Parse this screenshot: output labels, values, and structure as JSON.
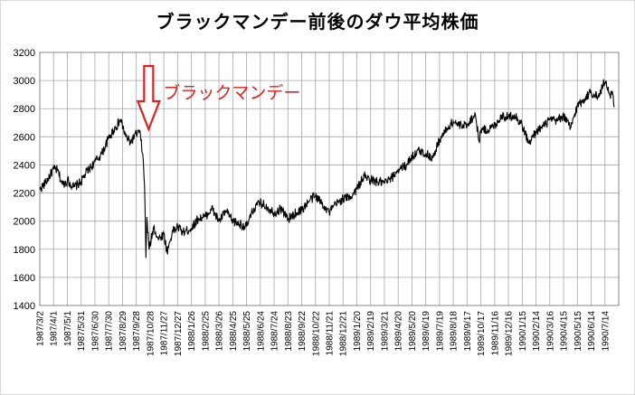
{
  "chart_data": {
    "type": "line",
    "title": "ブラックマンデー前後のダウ平均株価",
    "xlabel": "",
    "ylabel": "",
    "ylim": [
      1400,
      3200
    ],
    "yticks": [
      1400,
      1600,
      1800,
      2000,
      2200,
      2400,
      2600,
      2800,
      3000,
      3200
    ],
    "grid": true,
    "legend": "none",
    "line_color": "#000000",
    "x_tick_labels": [
      "1987/3/2",
      "1987/4/1",
      "1987/5/1",
      "1987/5/31",
      "1987/6/30",
      "1987/7/30",
      "1987/8/29",
      "1987/9/28",
      "1987/10/28",
      "1987/11/27",
      "1987/12/27",
      "1988/1/26",
      "1988/2/25",
      "1988/3/26",
      "1988/4/25",
      "1988/5/25",
      "1988/6/24",
      "1988/7/24",
      "1988/8/23",
      "1988/9/22",
      "1988/10/22",
      "1988/11/21",
      "1988/12/21",
      "1989/1/20",
      "1989/2/19",
      "1989/3/21",
      "1989/4/20",
      "1989/5/20",
      "1989/6/19",
      "1989/7/19",
      "1989/8/18",
      "1989/9/17",
      "1989/10/17",
      "1989/11/16",
      "1989/12/16",
      "1990/1/15",
      "1990/2/14",
      "1990/3/16",
      "1990/4/15",
      "1990/5/15",
      "1990/6/14",
      "1990/7/14"
    ],
    "annotation": {
      "text": "ブラックマンデー",
      "color": "#e02020",
      "date": "1987/10/19"
    },
    "series": [
      {
        "points": [
          [
            "1987/3/2",
            2225
          ],
          [
            "1987/3/15",
            2275
          ],
          [
            "1987/4/1",
            2370
          ],
          [
            "1987/4/10",
            2360
          ],
          [
            "1987/4/20",
            2260
          ],
          [
            "1987/5/1",
            2290
          ],
          [
            "1987/5/15",
            2240
          ],
          [
            "1987/5/31",
            2280
          ],
          [
            "1987/6/10",
            2340
          ],
          [
            "1987/6/30",
            2420
          ],
          [
            "1987/7/15",
            2480
          ],
          [
            "1987/7/30",
            2590
          ],
          [
            "1987/8/10",
            2650
          ],
          [
            "1987/8/25",
            2720
          ],
          [
            "1987/9/5",
            2600
          ],
          [
            "1987/9/15",
            2560
          ],
          [
            "1987/9/28",
            2620
          ],
          [
            "1987/10/5",
            2640
          ],
          [
            "1987/10/12",
            2480
          ],
          [
            "1987/10/16",
            2250
          ],
          [
            "1987/10/19",
            1738
          ],
          [
            "1987/10/21",
            2030
          ],
          [
            "1987/10/26",
            1800
          ],
          [
            "1987/11/5",
            1960
          ],
          [
            "1987/11/15",
            1870
          ],
          [
            "1987/11/27",
            1910
          ],
          [
            "1987/12/4",
            1780
          ],
          [
            "1987/12/15",
            1920
          ],
          [
            "1987/12/27",
            1960
          ],
          [
            "1988/1/8",
            1920
          ],
          [
            "1988/1/26",
            1950
          ],
          [
            "1988/2/10",
            2020
          ],
          [
            "1988/2/25",
            2030
          ],
          [
            "1988/3/10",
            2090
          ],
          [
            "1988/3/26",
            2000
          ],
          [
            "1988/4/10",
            2070
          ],
          [
            "1988/4/25",
            2000
          ],
          [
            "1988/5/10",
            1980
          ],
          [
            "1988/5/25",
            1960
          ],
          [
            "1988/6/10",
            2090
          ],
          [
            "1988/6/24",
            2130
          ],
          [
            "1988/7/10",
            2100
          ],
          [
            "1988/7/24",
            2060
          ],
          [
            "1988/8/10",
            2090
          ],
          [
            "1988/8/23",
            2010
          ],
          [
            "1988/9/10",
            2060
          ],
          [
            "1988/9/22",
            2080
          ],
          [
            "1988/10/10",
            2150
          ],
          [
            "1988/10/22",
            2180
          ],
          [
            "1988/11/10",
            2110
          ],
          [
            "1988/11/21",
            2060
          ],
          [
            "1988/12/5",
            2120
          ],
          [
            "1988/12/21",
            2160
          ],
          [
            "1989/1/5",
            2170
          ],
          [
            "1989/1/20",
            2230
          ],
          [
            "1989/2/5",
            2320
          ],
          [
            "1989/2/19",
            2290
          ],
          [
            "1989/3/5",
            2280
          ],
          [
            "1989/3/21",
            2270
          ],
          [
            "1989/4/5",
            2300
          ],
          [
            "1989/4/20",
            2370
          ],
          [
            "1989/5/5",
            2390
          ],
          [
            "1989/5/20",
            2460
          ],
          [
            "1989/6/5",
            2500
          ],
          [
            "1989/6/19",
            2480
          ],
          [
            "1989/7/5",
            2450
          ],
          [
            "1989/7/19",
            2580
          ],
          [
            "1989/8/5",
            2660
          ],
          [
            "1989/8/18",
            2710
          ],
          [
            "1989/9/5",
            2670
          ],
          [
            "1989/9/17",
            2690
          ],
          [
            "1989/10/5",
            2760
          ],
          [
            "1989/10/13",
            2570
          ],
          [
            "1989/10/17",
            2650
          ],
          [
            "1989/11/1",
            2650
          ],
          [
            "1989/11/16",
            2680
          ],
          [
            "1989/12/1",
            2750
          ],
          [
            "1989/12/16",
            2740
          ],
          [
            "1989/12/29",
            2760
          ],
          [
            "1990/1/15",
            2680
          ],
          [
            "1990/1/30",
            2550
          ],
          [
            "1990/2/14",
            2640
          ],
          [
            "1990/3/1",
            2670
          ],
          [
            "1990/3/16",
            2720
          ],
          [
            "1990/3/30",
            2710
          ],
          [
            "1990/4/15",
            2750
          ],
          [
            "1990/4/30",
            2660
          ],
          [
            "1990/5/15",
            2820
          ],
          [
            "1990/5/30",
            2870
          ],
          [
            "1990/6/14",
            2920
          ],
          [
            "1990/6/30",
            2880
          ],
          [
            "1990/7/10",
            2970
          ],
          [
            "1990/7/16",
            2999
          ],
          [
            "1990/7/24",
            2900
          ],
          [
            "1990/7/31",
            2905
          ],
          [
            "1990/8/3",
            2810
          ]
        ]
      }
    ]
  }
}
